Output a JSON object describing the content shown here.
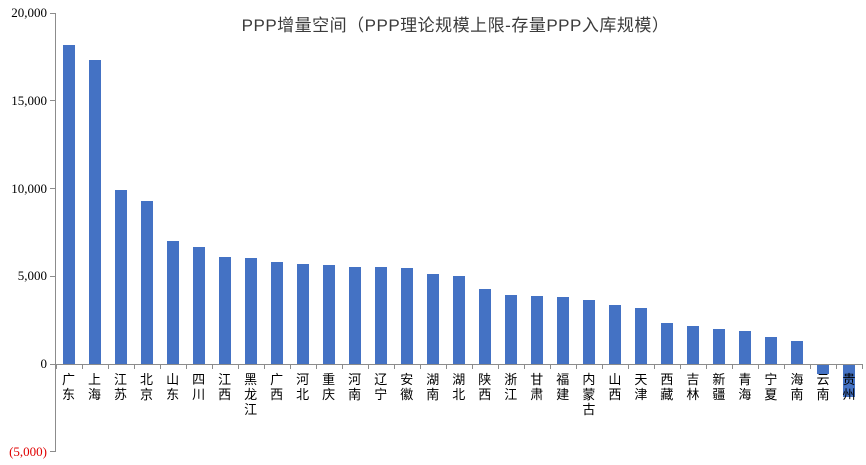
{
  "chart_data": {
    "type": "bar",
    "title": "PPP增量空间（PPP理论规模上限-存量PPP入库规模）",
    "categories": [
      "广东",
      "上海",
      "江苏",
      "北京",
      "山东",
      "四川",
      "江西",
      "黑龙江",
      "广西",
      "河北",
      "重庆",
      "河南",
      "辽宁",
      "安徽",
      "湖南",
      "湖北",
      "陕西",
      "浙江",
      "甘肃",
      "福建",
      "内蒙古",
      "山西",
      "天津",
      "西藏",
      "吉林",
      "新疆",
      "青海",
      "宁夏",
      "海南",
      "云南",
      "贵州"
    ],
    "values": [
      18200,
      17300,
      9900,
      9300,
      7000,
      6650,
      6100,
      6050,
      5800,
      5700,
      5650,
      5550,
      5500,
      5450,
      5100,
      5000,
      4250,
      3950,
      3900,
      3800,
      3650,
      3350,
      3200,
      2350,
      2150,
      2000,
      1900,
      1550,
      1300,
      -500,
      -1800
    ],
    "ylim": [
      -5000,
      20000
    ],
    "y_ticks": [
      {
        "value": 20000,
        "label": "20,000",
        "color": "#000000"
      },
      {
        "value": 15000,
        "label": "15,000",
        "color": "#000000"
      },
      {
        "value": 10000,
        "label": "10,000",
        "color": "#000000"
      },
      {
        "value": 5000,
        "label": "5,000",
        "color": "#000000"
      },
      {
        "value": 0,
        "label": "0",
        "color": "#000000"
      },
      {
        "value": -5000,
        "label": "(5,000)",
        "color": "#e00000"
      }
    ],
    "colors": {
      "bar": "#4472C4",
      "axis": "#8c8c8c",
      "title": "#3b3b3b",
      "negative_tick_label": "#e00000"
    },
    "grid": false,
    "legend": false,
    "x_label_orientation": "vertical-stacked"
  }
}
